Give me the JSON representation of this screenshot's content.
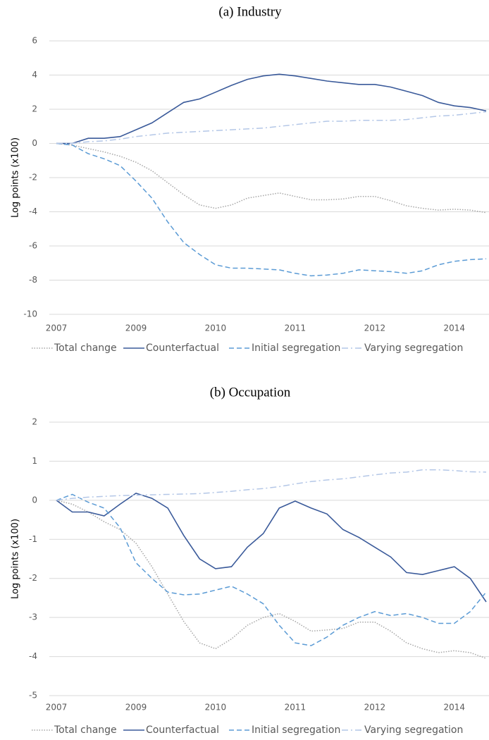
{
  "chart_data": [
    {
      "type": "line",
      "title": "(a) Industry",
      "y_label": "Log points (x100)",
      "categories": [
        "2007",
        null,
        null,
        null,
        null,
        "2009",
        null,
        null,
        null,
        null,
        "2010",
        null,
        null,
        null,
        null,
        "2011",
        null,
        null,
        null,
        null,
        "2012",
        null,
        null,
        null,
        null,
        "2014",
        null,
        null
      ],
      "ylim": [
        -10,
        6
      ],
      "yticks": [
        -10,
        -8,
        -6,
        -4,
        -2,
        0,
        2,
        4,
        6
      ],
      "grid": true,
      "legend": "bottom",
      "series": [
        {
          "name": "Total change",
          "color": "#a6a6a6",
          "line_style": "dotted",
          "values": [
            0,
            -0.1,
            -0.3,
            -0.5,
            -0.75,
            -1.1,
            -1.6,
            -2.3,
            -3.0,
            -3.6,
            -3.8,
            -3.6,
            -3.2,
            -3.05,
            -2.9,
            -3.1,
            -3.3,
            -3.3,
            -3.25,
            -3.1,
            -3.1,
            -3.35,
            -3.65,
            -3.8,
            -3.9,
            -3.85,
            -3.9,
            -4.05
          ]
        },
        {
          "name": "Counterfactual",
          "color": "#3a5a9a",
          "line_style": "solid",
          "values": [
            0,
            0,
            0.3,
            0.3,
            0.4,
            0.8,
            1.2,
            1.8,
            2.4,
            2.6,
            3.0,
            3.4,
            3.75,
            3.95,
            4.05,
            3.95,
            3.8,
            3.65,
            3.55,
            3.45,
            3.45,
            3.3,
            3.05,
            2.8,
            2.4,
            2.2,
            2.1,
            1.9
          ]
        },
        {
          "name": "Initial segregation",
          "color": "#5b9bd5",
          "line_style": "dashed",
          "values": [
            0,
            -0.1,
            -0.6,
            -0.9,
            -1.3,
            -2.2,
            -3.2,
            -4.6,
            -5.8,
            -6.5,
            -7.1,
            -7.3,
            -7.3,
            -7.35,
            -7.4,
            -7.6,
            -7.75,
            -7.7,
            -7.6,
            -7.4,
            -7.45,
            -7.5,
            -7.6,
            -7.45,
            -7.1,
            -6.9,
            -6.8,
            -6.75
          ]
        },
        {
          "name": "Varying segregation",
          "color": "#b4c7e7",
          "line_style": "dashdot",
          "values": [
            0,
            0,
            0.1,
            0.15,
            0.25,
            0.4,
            0.5,
            0.6,
            0.65,
            0.7,
            0.75,
            0.8,
            0.85,
            0.9,
            1.0,
            1.1,
            1.2,
            1.3,
            1.3,
            1.35,
            1.35,
            1.35,
            1.4,
            1.5,
            1.6,
            1.65,
            1.75,
            1.85
          ]
        }
      ]
    },
    {
      "type": "line",
      "title": "(b) Occupation",
      "y_label": "Log points (x100)",
      "categories": [
        "2007",
        null,
        null,
        null,
        null,
        "2009",
        null,
        null,
        null,
        null,
        "2010",
        null,
        null,
        null,
        null,
        "2011",
        null,
        null,
        null,
        null,
        "2012",
        null,
        null,
        null,
        null,
        "2014",
        null,
        null
      ],
      "ylim": [
        -5,
        2
      ],
      "yticks": [
        -5,
        -4,
        -3,
        -2,
        -1,
        0,
        1,
        2
      ],
      "grid": true,
      "legend": "bottom",
      "series": [
        {
          "name": "Total change",
          "color": "#a6a6a6",
          "line_style": "dotted",
          "values": [
            0,
            -0.1,
            -0.3,
            -0.55,
            -0.75,
            -1.1,
            -1.7,
            -2.4,
            -3.1,
            -3.65,
            -3.8,
            -3.55,
            -3.2,
            -3.0,
            -2.9,
            -3.1,
            -3.35,
            -3.32,
            -3.28,
            -3.12,
            -3.12,
            -3.35,
            -3.65,
            -3.8,
            -3.9,
            -3.85,
            -3.9,
            -4.05
          ]
        },
        {
          "name": "Counterfactual",
          "color": "#3a5a9a",
          "line_style": "solid",
          "values": [
            0,
            -0.3,
            -0.3,
            -0.4,
            -0.1,
            0.18,
            0.05,
            -0.2,
            -0.9,
            -1.5,
            -1.75,
            -1.7,
            -1.2,
            -0.85,
            -0.2,
            -0.02,
            -0.2,
            -0.35,
            -0.75,
            -0.95,
            -1.2,
            -1.45,
            -1.85,
            -1.9,
            -1.8,
            -1.7,
            -2.0,
            -2.6
          ]
        },
        {
          "name": "Initial segregation",
          "color": "#5b9bd5",
          "line_style": "dashed",
          "values": [
            0,
            0.15,
            -0.05,
            -0.2,
            -0.7,
            -1.6,
            -2.0,
            -2.35,
            -2.42,
            -2.4,
            -2.3,
            -2.2,
            -2.4,
            -2.65,
            -3.2,
            -3.65,
            -3.72,
            -3.5,
            -3.2,
            -3.0,
            -2.85,
            -2.95,
            -2.9,
            -3.0,
            -3.15,
            -3.15,
            -2.85,
            -2.35
          ]
        },
        {
          "name": "Varying segregation",
          "color": "#b4c7e7",
          "line_style": "dashdot",
          "values": [
            0,
            0.05,
            0.08,
            0.1,
            0.12,
            0.13,
            0.14,
            0.15,
            0.16,
            0.17,
            0.2,
            0.23,
            0.27,
            0.3,
            0.35,
            0.42,
            0.48,
            0.52,
            0.55,
            0.6,
            0.65,
            0.7,
            0.72,
            0.78,
            0.78,
            0.76,
            0.73,
            0.72
          ]
        }
      ]
    }
  ]
}
